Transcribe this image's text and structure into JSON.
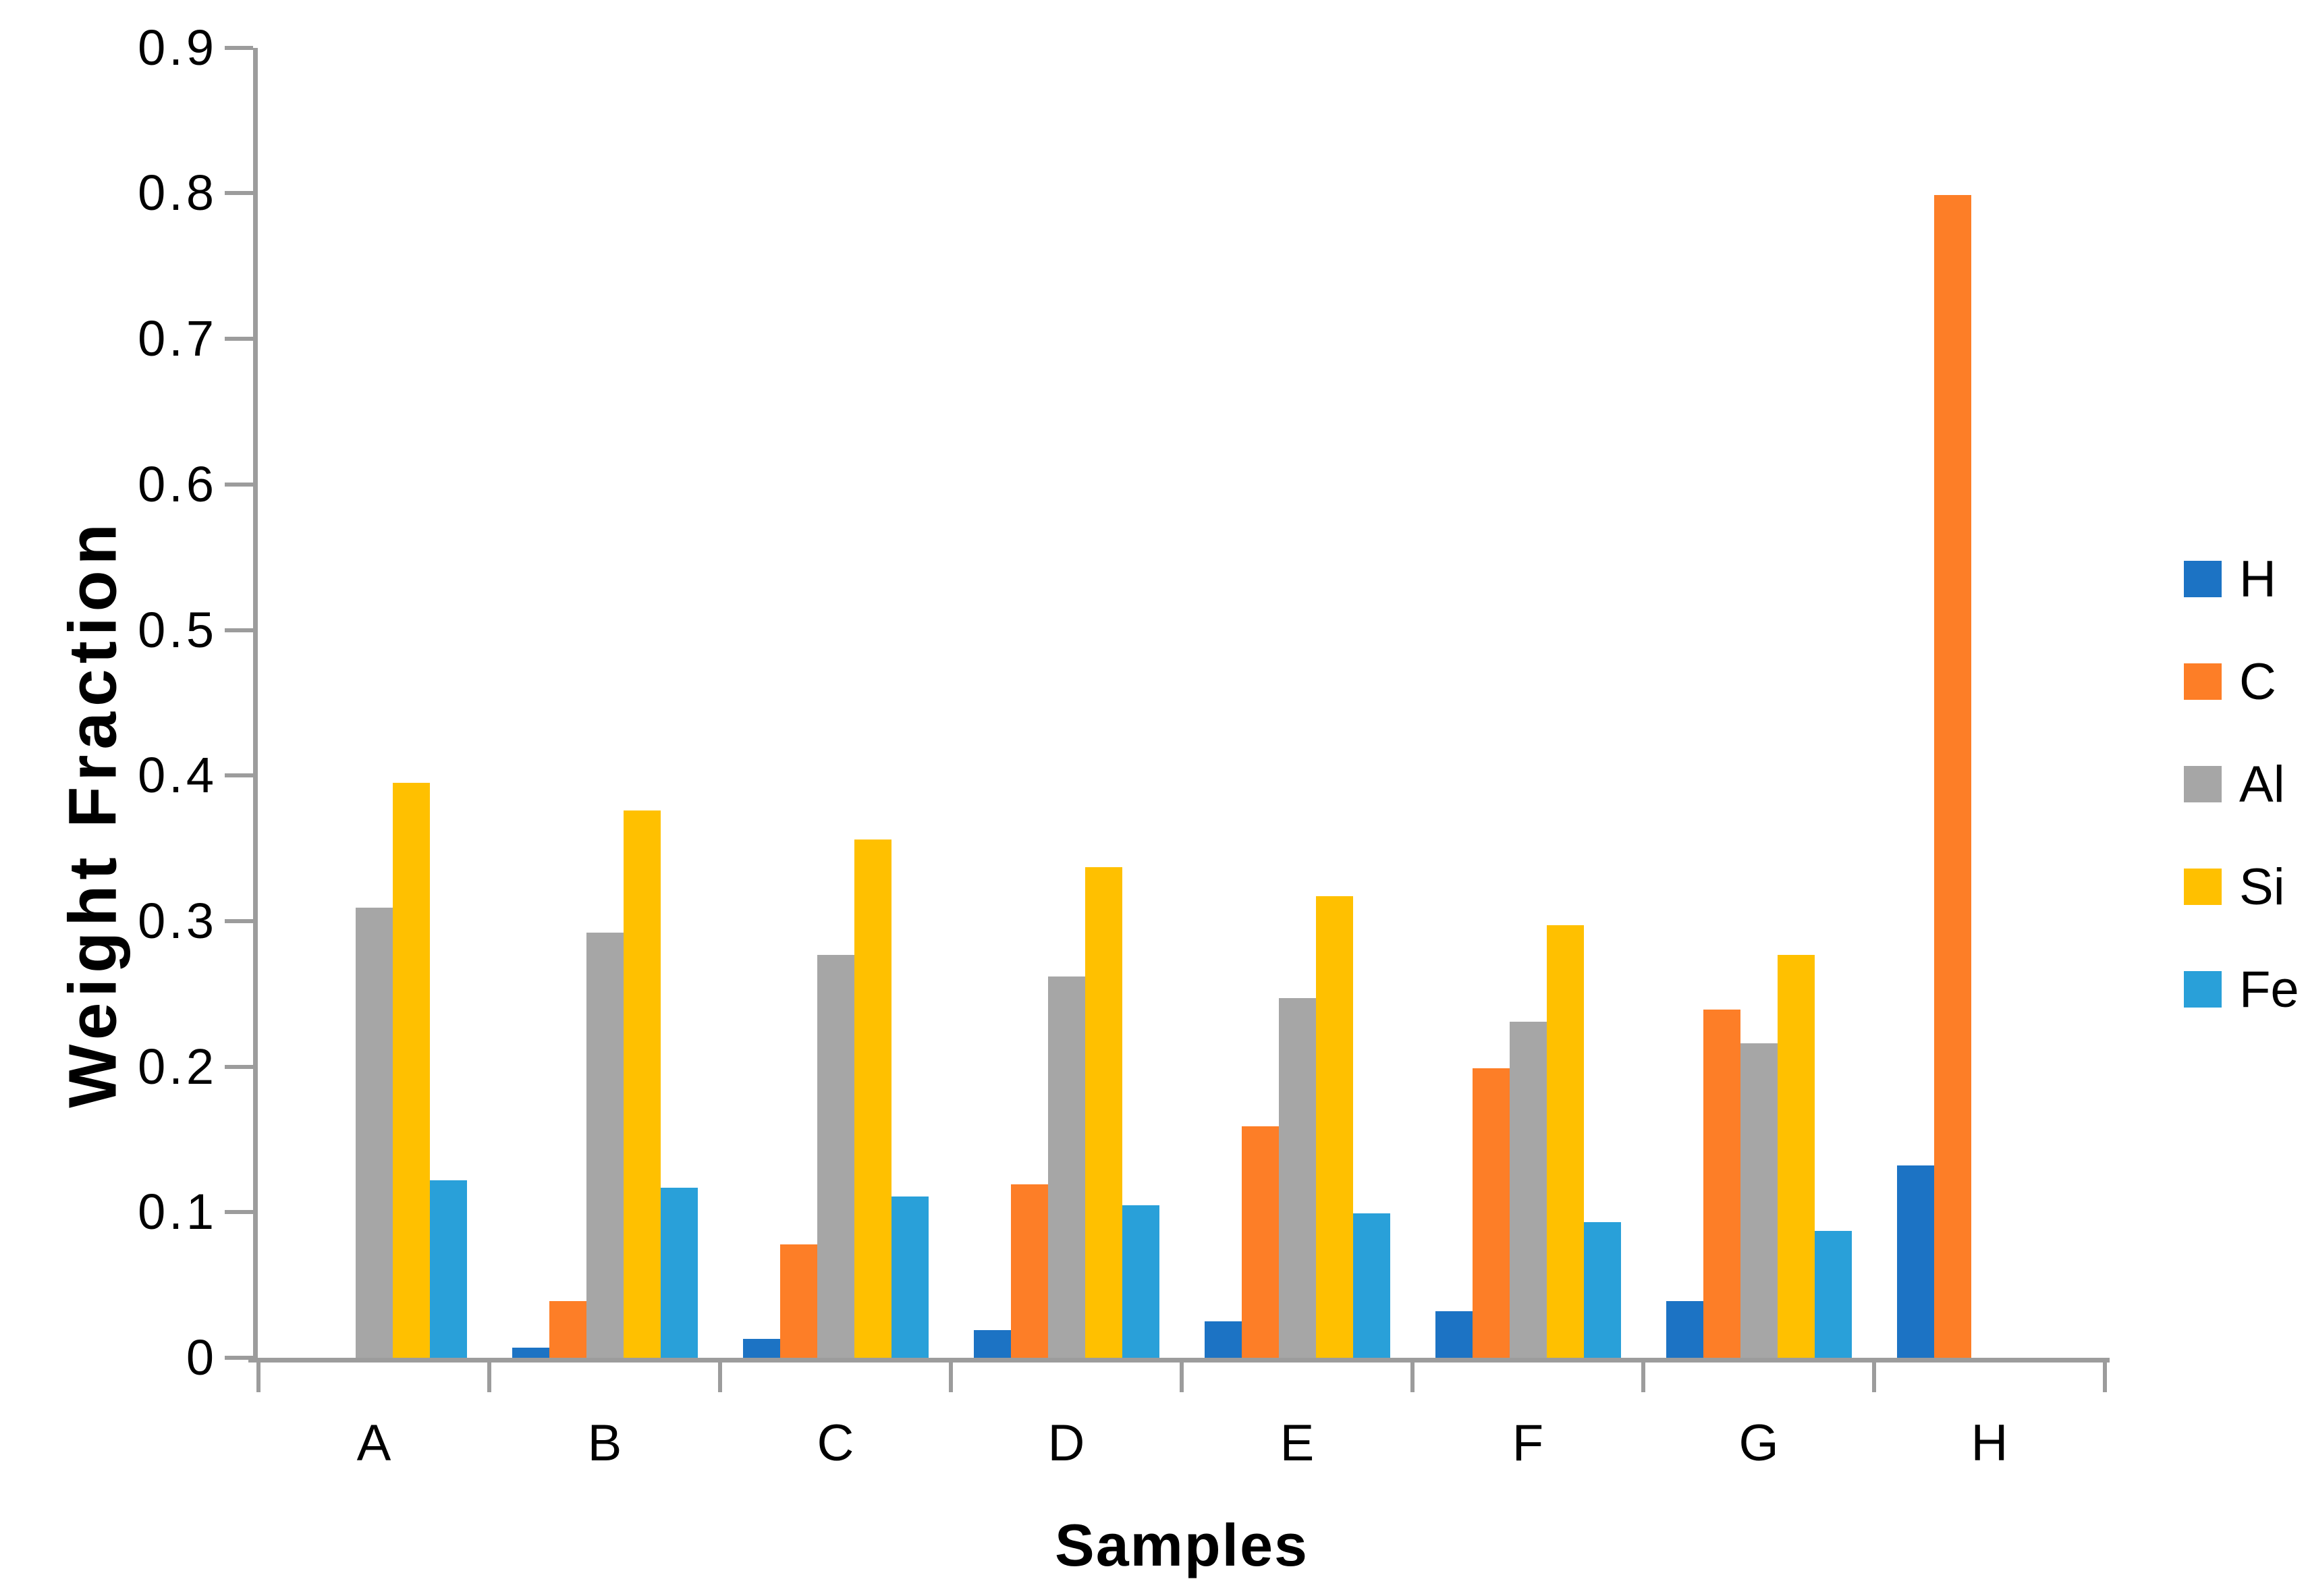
{
  "chart_data": {
    "type": "bar",
    "title": "",
    "xlabel": "Samples",
    "ylabel": "Weight Fraction",
    "categories": [
      "A",
      "B",
      "C",
      "D",
      "E",
      "F",
      "G",
      "H"
    ],
    "series": [
      {
        "name": "H",
        "color": "#1C73C4",
        "values": [
          0,
          0.007,
          0.013,
          0.019,
          0.025,
          0.032,
          0.039,
          0.132
        ]
      },
      {
        "name": "C",
        "color": "#FD7E27",
        "values": [
          0,
          0.039,
          0.078,
          0.119,
          0.159,
          0.199,
          0.239,
          0.799
        ]
      },
      {
        "name": "Al",
        "color": "#A6A6A6",
        "values": [
          0.309,
          0.292,
          0.277,
          0.262,
          0.247,
          0.231,
          0.216,
          0
        ]
      },
      {
        "name": "Si",
        "color": "#FFC000",
        "values": [
          0.395,
          0.376,
          0.356,
          0.337,
          0.317,
          0.297,
          0.277,
          0
        ]
      },
      {
        "name": "Fe",
        "color": "#29A0D9",
        "values": [
          0.122,
          0.117,
          0.111,
          0.105,
          0.099,
          0.093,
          0.087,
          0
        ]
      }
    ],
    "ylim": [
      0,
      0.9
    ],
    "yticks": [
      "0",
      "0.1",
      "0.2",
      "0.3",
      "0.4",
      "0.5",
      "0.6",
      "0.7",
      "0.8",
      "0.9"
    ],
    "grid": false,
    "legend_position": "right",
    "axis_color": "#9C9C9C",
    "text_color": "#000000",
    "background": "#ffffff"
  }
}
